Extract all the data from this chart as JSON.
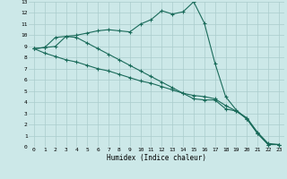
{
  "xlabel": "Humidex (Indice chaleur)",
  "background_color": "#cce8e8",
  "grid_color": "#aacccc",
  "line_color": "#1a6b5a",
  "xlim": [
    -0.5,
    23.5
  ],
  "ylim": [
    0,
    13
  ],
  "xticks": [
    0,
    1,
    2,
    3,
    4,
    5,
    6,
    7,
    8,
    9,
    10,
    11,
    12,
    13,
    14,
    15,
    16,
    17,
    18,
    19,
    20,
    21,
    22,
    23
  ],
  "yticks": [
    0,
    1,
    2,
    3,
    4,
    5,
    6,
    7,
    8,
    9,
    10,
    11,
    12,
    13
  ],
  "line1_x": [
    0,
    1,
    2,
    3,
    4,
    5,
    6,
    7,
    8,
    9,
    10,
    11,
    12,
    13,
    14,
    15,
    16,
    17,
    18,
    19,
    20,
    21,
    22,
    23
  ],
  "line1_y": [
    8.8,
    8.9,
    9.0,
    9.9,
    10.0,
    10.2,
    10.4,
    10.5,
    10.4,
    10.3,
    11.0,
    11.4,
    12.2,
    11.9,
    12.1,
    13.0,
    11.1,
    7.5,
    4.5,
    3.3,
    2.5,
    1.2,
    0.2,
    0.2
  ],
  "line2_x": [
    0,
    1,
    2,
    3,
    4,
    5,
    6,
    7,
    8,
    9,
    10,
    11,
    12,
    13,
    14,
    15,
    16,
    17,
    18,
    19,
    20,
    21,
    22,
    23
  ],
  "line2_y": [
    8.8,
    8.9,
    9.8,
    9.9,
    9.8,
    9.3,
    8.8,
    8.3,
    7.8,
    7.3,
    6.8,
    6.3,
    5.8,
    5.3,
    4.8,
    4.3,
    4.2,
    4.2,
    3.4,
    3.2,
    2.5,
    1.2,
    0.2,
    0.2
  ],
  "line3_x": [
    0,
    1,
    2,
    3,
    4,
    5,
    6,
    7,
    8,
    9,
    10,
    11,
    12,
    13,
    14,
    15,
    16,
    17,
    18,
    19,
    20,
    21,
    22,
    23
  ],
  "line3_y": [
    8.8,
    8.4,
    8.1,
    7.8,
    7.6,
    7.3,
    7.0,
    6.8,
    6.5,
    6.2,
    5.9,
    5.7,
    5.4,
    5.1,
    4.8,
    4.6,
    4.5,
    4.3,
    3.7,
    3.2,
    2.6,
    1.3,
    0.3,
    0.2
  ]
}
